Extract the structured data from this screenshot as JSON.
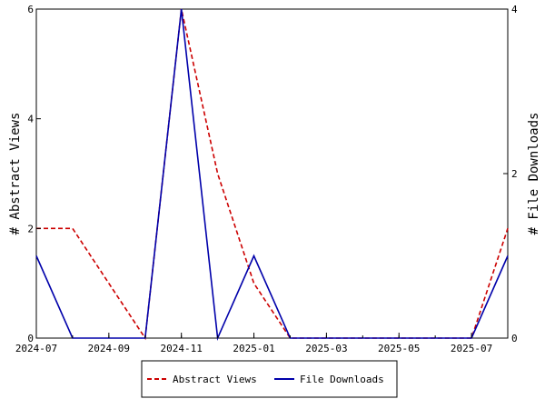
{
  "chart_data": {
    "type": "line",
    "title": "",
    "x_axis": {
      "ticks": [
        "2024-07",
        "2024-09",
        "2024-11",
        "2025-01",
        "2025-03",
        "2025-05",
        "2025-07"
      ],
      "range": [
        "2024-07",
        "2025-08"
      ]
    },
    "y_left": {
      "label": "# Abstract Views",
      "ticks": [
        "0",
        "2",
        "4",
        "6"
      ],
      "ylim": [
        0,
        6
      ]
    },
    "y_right": {
      "label": "# File Downloads",
      "ticks": [
        "0",
        "2",
        "4"
      ],
      "ylim": [
        0,
        4
      ]
    },
    "grid": false,
    "legend_position": "bottom",
    "x": [
      "2024-07",
      "2024-08",
      "2024-09",
      "2024-10",
      "2024-11",
      "2024-12",
      "2025-01",
      "2025-02",
      "2025-03",
      "2025-04",
      "2025-05",
      "2025-06",
      "2025-07",
      "2025-08"
    ],
    "series": [
      {
        "name": "Abstract Views",
        "axis": "left",
        "color": "#cc0000",
        "style": "dashed",
        "values": [
          2,
          2,
          1,
          0,
          6,
          3,
          1,
          0,
          0,
          0,
          0,
          0,
          0,
          2
        ]
      },
      {
        "name": "File Downloads",
        "axis": "right",
        "color": "#0000aa",
        "style": "solid",
        "values": [
          1,
          0,
          0,
          0,
          4,
          0,
          1,
          0,
          0,
          0,
          0,
          0,
          0,
          1
        ]
      }
    ]
  }
}
